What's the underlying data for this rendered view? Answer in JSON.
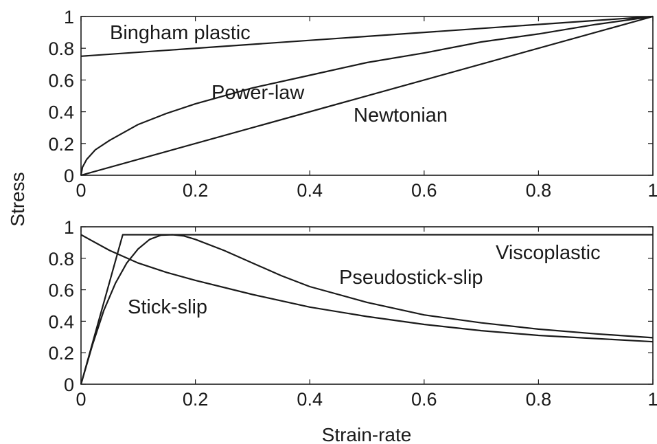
{
  "ylabel": "Stress",
  "xlabel": "Strain-rate",
  "chart_data": [
    {
      "type": "line",
      "xlim": [
        0,
        1
      ],
      "ylim": [
        0,
        1
      ],
      "xticks": [
        "0",
        "0.2",
        "0.4",
        "0.6",
        "0.8",
        "1"
      ],
      "yticks": [
        "0",
        "0.2",
        "0.4",
        "0.6",
        "0.8",
        "1"
      ],
      "grid": false,
      "series": [
        {
          "name": "Bingham plastic",
          "x": [
            0,
            1
          ],
          "y": [
            0.75,
            1.0
          ]
        },
        {
          "name": "Power-law",
          "x": [
            0,
            0.0025,
            0.01,
            0.025,
            0.05,
            0.1,
            0.15,
            0.2,
            0.3,
            0.4,
            0.5,
            0.6,
            0.7,
            0.8,
            0.9,
            1.0
          ],
          "y": [
            0,
            0.05,
            0.1,
            0.16,
            0.22,
            0.32,
            0.39,
            0.45,
            0.55,
            0.63,
            0.71,
            0.77,
            0.84,
            0.89,
            0.95,
            1.0
          ]
        },
        {
          "name": "Newtonian",
          "x": [
            0,
            1
          ],
          "y": [
            0,
            1
          ]
        }
      ],
      "annotations": [
        "Bingham plastic",
        "Power-law",
        "Newtonian"
      ]
    },
    {
      "type": "line",
      "xlim": [
        0,
        1
      ],
      "ylim": [
        0,
        1
      ],
      "xticks": [
        "0",
        "0.2",
        "0.4",
        "0.6",
        "0.8",
        "1"
      ],
      "yticks": [
        "0",
        "0.2",
        "0.4",
        "0.6",
        "0.8",
        "1"
      ],
      "grid": false,
      "series": [
        {
          "name": "Viscoplastic",
          "x": [
            0,
            0.073,
            1.0
          ],
          "y": [
            0,
            0.95,
            0.95
          ]
        },
        {
          "name": "Pseudostick-slip",
          "x": [
            0,
            0.02,
            0.04,
            0.06,
            0.08,
            0.1,
            0.12,
            0.14,
            0.16,
            0.18,
            0.2,
            0.25,
            0.3,
            0.35,
            0.4,
            0.5,
            0.6,
            0.7,
            0.8,
            0.9,
            1.0
          ],
          "y": [
            0,
            0.25,
            0.47,
            0.64,
            0.77,
            0.86,
            0.92,
            0.947,
            0.95,
            0.942,
            0.92,
            0.85,
            0.77,
            0.69,
            0.62,
            0.52,
            0.44,
            0.39,
            0.35,
            0.32,
            0.295
          ]
        },
        {
          "name": "Stick-slip",
          "x": [
            0,
            0.05,
            0.1,
            0.15,
            0.2,
            0.3,
            0.4,
            0.5,
            0.6,
            0.7,
            0.8,
            0.9,
            1.0
          ],
          "y": [
            0.95,
            0.85,
            0.77,
            0.71,
            0.66,
            0.57,
            0.49,
            0.43,
            0.38,
            0.34,
            0.31,
            0.29,
            0.27
          ]
        }
      ],
      "annotations": [
        "Viscoplastic",
        "Pseudostick-slip",
        "Stick-slip"
      ]
    }
  ]
}
